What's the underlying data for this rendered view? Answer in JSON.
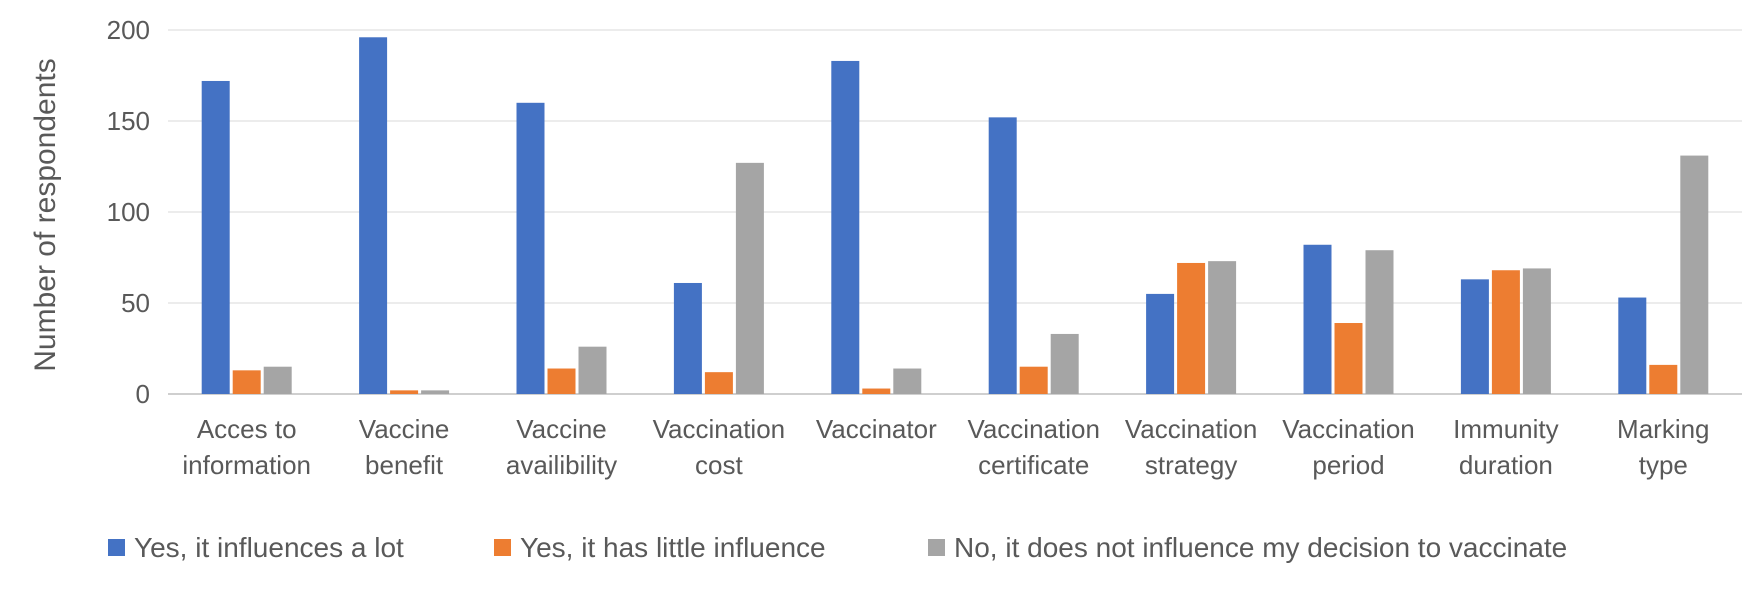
{
  "chart_data": {
    "type": "bar",
    "title": "",
    "xlabel": "",
    "ylabel": "Number of respondents",
    "ylim": [
      0,
      200
    ],
    "yticks": [
      0,
      50,
      100,
      150,
      200
    ],
    "grid": true,
    "legend_position": "bottom",
    "categories": [
      [
        "Acces to",
        "information"
      ],
      [
        "Vaccine",
        "benefit"
      ],
      [
        "Vaccine",
        "availibility"
      ],
      [
        "Vaccination",
        "cost"
      ],
      [
        "Vaccinator"
      ],
      [
        "Vaccination",
        "certificate"
      ],
      [
        "Vaccination",
        "strategy"
      ],
      [
        "Vaccination",
        "period"
      ],
      [
        "Immunity",
        "duration"
      ],
      [
        "Marking",
        "type"
      ]
    ],
    "series": [
      {
        "name": "Yes, it influences a lot",
        "color": "#4472C4",
        "values": [
          172,
          196,
          160,
          61,
          183,
          152,
          55,
          82,
          63,
          53
        ]
      },
      {
        "name": "Yes, it has little influence",
        "color": "#ED7D31",
        "values": [
          13,
          2,
          14,
          12,
          3,
          15,
          72,
          39,
          68,
          16
        ]
      },
      {
        "name": "No, it does not influence my decision to vaccinate",
        "color": "#A5A5A5",
        "values": [
          15,
          2,
          26,
          127,
          14,
          33,
          73,
          79,
          69,
          131
        ]
      }
    ]
  }
}
